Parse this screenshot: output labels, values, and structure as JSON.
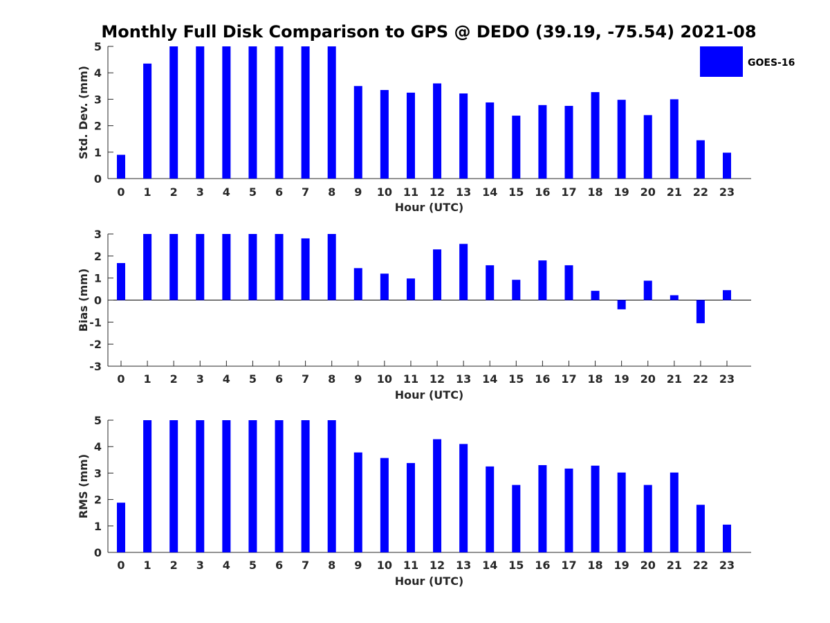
{
  "title": "Monthly Full Disk Comparison to GPS @ DEDO (39.19, -75.54) 2021-08",
  "colors": {
    "bar": "#0000ff",
    "axis": "#262626"
  },
  "legend": {
    "label": "GOES-16",
    "placement": "top-right"
  },
  "chart_data": [
    {
      "type": "bar",
      "xlabel": "Hour (UTC)",
      "ylabel": "Std. Dev. (mm)",
      "ylim": [
        0,
        5
      ],
      "yticks": [
        0,
        1,
        2,
        3,
        4,
        5
      ],
      "categories": [
        "0",
        "1",
        "2",
        "3",
        "4",
        "5",
        "6",
        "7",
        "8",
        "9",
        "10",
        "11",
        "12",
        "13",
        "14",
        "15",
        "16",
        "17",
        "18",
        "19",
        "20",
        "21",
        "22",
        "23"
      ],
      "series": [
        {
          "name": "GOES-16",
          "values": [
            0.9,
            4.35,
            5,
            5,
            5,
            5,
            5,
            5,
            5,
            3.5,
            3.35,
            3.25,
            3.6,
            3.22,
            2.88,
            2.38,
            2.78,
            2.75,
            3.27,
            2.98,
            2.4,
            3.0,
            1.45,
            0.98
          ]
        }
      ]
    },
    {
      "type": "bar",
      "xlabel": "Hour (UTC)",
      "ylabel": "Bias (mm)",
      "ylim": [
        -3,
        3
      ],
      "yticks": [
        -3,
        -2,
        -1,
        0,
        1,
        2,
        3
      ],
      "categories": [
        "0",
        "1",
        "2",
        "3",
        "4",
        "5",
        "6",
        "7",
        "8",
        "9",
        "10",
        "11",
        "12",
        "13",
        "14",
        "15",
        "16",
        "17",
        "18",
        "19",
        "20",
        "21",
        "22",
        "23"
      ],
      "series": [
        {
          "name": "GOES-16",
          "values": [
            1.68,
            3,
            3,
            3,
            3,
            3,
            3,
            2.8,
            3,
            1.45,
            1.2,
            0.98,
            2.3,
            2.55,
            1.58,
            0.92,
            1.8,
            1.58,
            0.42,
            -0.42,
            0.88,
            0.22,
            -1.05,
            0.45
          ]
        }
      ]
    },
    {
      "type": "bar",
      "xlabel": "Hour (UTC)",
      "ylabel": "RMS (mm)",
      "ylim": [
        0,
        5
      ],
      "yticks": [
        0,
        1,
        2,
        3,
        4,
        5
      ],
      "categories": [
        "0",
        "1",
        "2",
        "3",
        "4",
        "5",
        "6",
        "7",
        "8",
        "9",
        "10",
        "11",
        "12",
        "13",
        "14",
        "15",
        "16",
        "17",
        "18",
        "19",
        "20",
        "21",
        "22",
        "23"
      ],
      "series": [
        {
          "name": "GOES-16",
          "values": [
            1.88,
            5,
            5,
            5,
            5,
            5,
            5,
            5,
            5,
            3.78,
            3.57,
            3.38,
            4.28,
            4.1,
            3.25,
            2.55,
            3.3,
            3.17,
            3.28,
            3.02,
            2.55,
            3.02,
            1.8,
            1.05
          ]
        }
      ]
    }
  ]
}
